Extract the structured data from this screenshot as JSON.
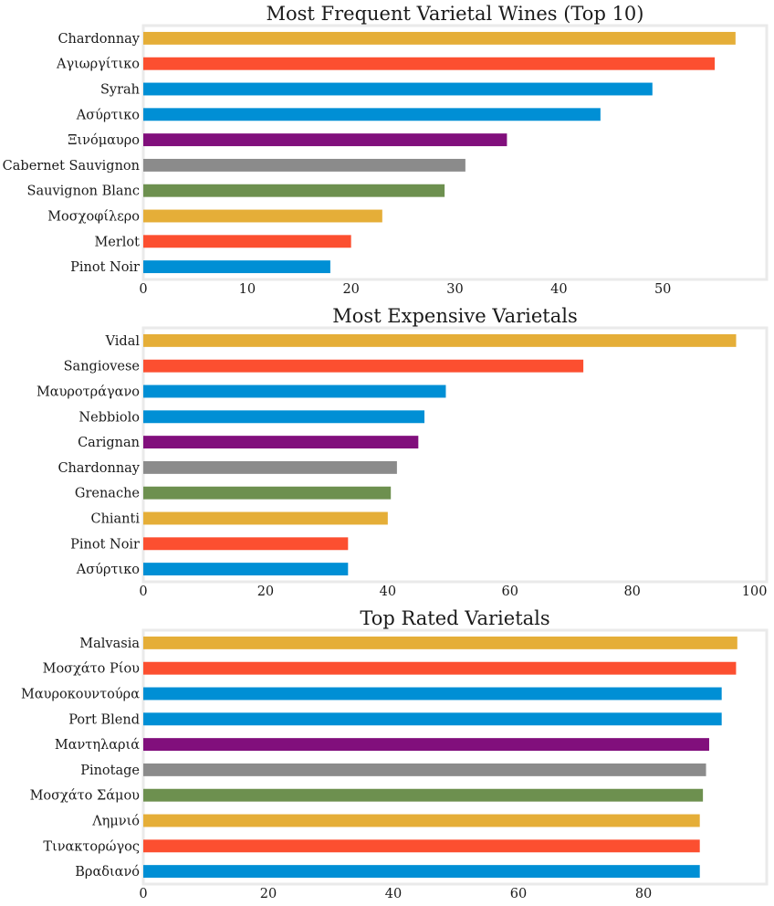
{
  "chart_data": [
    {
      "type": "bar",
      "orientation": "horizontal",
      "title": "Most Frequent Varietal Wines (Top 10)",
      "categories": [
        "Chardonnay",
        "Αγιωργίτικο",
        "Syrah",
        "Ασύρτικο",
        "Ξινόμαυρο",
        "Cabernet Sauvignon",
        "Sauvignon Blanc",
        "Μοσχοφίλερο",
        "Merlot",
        "Pinot Noir"
      ],
      "values": [
        57,
        55,
        49,
        44,
        35,
        31,
        29,
        23,
        20,
        18
      ],
      "xlim": [
        0,
        60
      ],
      "xticks": [
        0,
        10,
        20,
        30,
        40,
        50
      ],
      "xlabel": "",
      "ylabel": "",
      "grid": false
    },
    {
      "type": "bar",
      "orientation": "horizontal",
      "title": "Most Expensive Varietals",
      "categories": [
        "Vidal",
        "Sangiovese",
        "Μαυροτράγανο",
        "Nebbiolo",
        "Carignan",
        "Chardonnay",
        "Grenache",
        "Chianti",
        "Pinot Noir",
        "Ασύρτικο"
      ],
      "values": [
        97,
        72,
        49.5,
        46,
        45,
        41.5,
        40.5,
        40,
        33.5,
        33.5
      ],
      "xlim": [
        0,
        102
      ],
      "xticks": [
        0,
        20,
        40,
        60,
        80,
        100
      ],
      "xlabel": "",
      "ylabel": "",
      "grid": false
    },
    {
      "type": "bar",
      "orientation": "horizontal",
      "title": "Top Rated Varietals",
      "categories": [
        "Malvasia",
        "Μοσχάτο Ρίου",
        "Μαυροκουντούρα",
        "Port Blend",
        "Μαντηλαριά",
        "Pinotage",
        "Μοσχάτο Σάμου",
        "Λημνιό",
        "Τινακτορώγος",
        "Βραδιανό"
      ],
      "values": [
        95,
        94.8,
        92.5,
        92.5,
        90.5,
        90,
        89.5,
        89,
        89,
        89
      ],
      "xlim": [
        0,
        99.7
      ],
      "xticks": [
        0,
        20,
        40,
        60,
        80
      ],
      "xlabel": "",
      "ylabel": "",
      "grid": false
    }
  ],
  "colors": [
    "#e5ae38",
    "#fc4f30",
    "#008fd5",
    "#008fd5",
    "#810f7c",
    "#8b8b8b",
    "#6d904f",
    "#e5ae38",
    "#fc4f30",
    "#008fd5"
  ]
}
